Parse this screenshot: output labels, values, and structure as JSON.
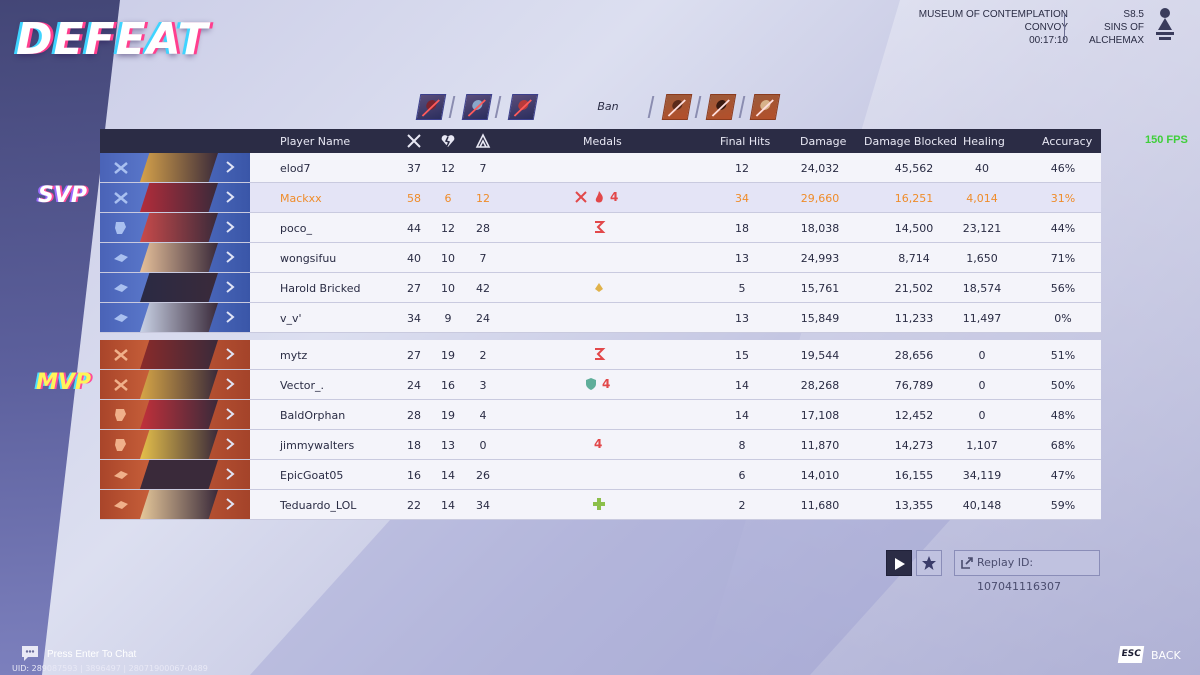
{
  "result_title": "DEFEAT",
  "map_info": {
    "map_name": "MUSEUM OF CONTEMPLATION",
    "mode": "CONVOY",
    "duration": "00:17:10",
    "season": "S8.5",
    "season_name": "SINS OF ALCHEMAX"
  },
  "fps": "150 FPS",
  "ban_label": "Ban",
  "headers": {
    "player_name": "Player Name",
    "medals": "Medals",
    "final_hits": "Final Hits",
    "damage": "Damage",
    "damage_blocked": "Damage Blocked",
    "healing": "Healing",
    "accuracy": "Accuracy",
    "kills_icon": "crossed-swords-icon",
    "deaths_icon": "broken-heart-icon",
    "assists_icon": "assist-icon"
  },
  "badges": {
    "svp": "SVP",
    "mvp": "MVP"
  },
  "team_blue": [
    {
      "name": "elod7",
      "kills": "37",
      "deaths": "12",
      "assists": "7",
      "final_hits": "12",
      "damage": "24,032",
      "damage_blocked": "45,562",
      "healing": "40",
      "accuracy": "46%"
    },
    {
      "name": "Mackxx",
      "kills": "58",
      "deaths": "6",
      "assists": "12",
      "final_hits": "34",
      "damage": "29,660",
      "damage_blocked": "16,251",
      "healing": "4,014",
      "accuracy": "31%"
    },
    {
      "name": "poco_",
      "kills": "44",
      "deaths": "12",
      "assists": "28",
      "final_hits": "18",
      "damage": "18,038",
      "damage_blocked": "14,500",
      "healing": "23,121",
      "accuracy": "44%"
    },
    {
      "name": "wongsifuu",
      "kills": "40",
      "deaths": "10",
      "assists": "7",
      "final_hits": "13",
      "damage": "24,993",
      "damage_blocked": "8,714",
      "healing": "1,650",
      "accuracy": "71%"
    },
    {
      "name": "Harold Bricked",
      "kills": "27",
      "deaths": "10",
      "assists": "42",
      "final_hits": "5",
      "damage": "15,761",
      "damage_blocked": "21,502",
      "healing": "18,574",
      "accuracy": "56%"
    },
    {
      "name": "v_v'",
      "kills": "34",
      "deaths": "9",
      "assists": "24",
      "final_hits": "13",
      "damage": "15,849",
      "damage_blocked": "11,233",
      "healing": "11,497",
      "accuracy": "0%"
    }
  ],
  "team_red": [
    {
      "name": "mytz",
      "kills": "27",
      "deaths": "19",
      "assists": "2",
      "final_hits": "15",
      "damage": "19,544",
      "damage_blocked": "28,656",
      "healing": "0",
      "accuracy": "51%"
    },
    {
      "name": "Vector_.",
      "kills": "24",
      "deaths": "16",
      "assists": "3",
      "final_hits": "14",
      "damage": "28,268",
      "damage_blocked": "76,789",
      "healing": "0",
      "accuracy": "50%"
    },
    {
      "name": "BaldOrphan",
      "kills": "28",
      "deaths": "19",
      "assists": "4",
      "final_hits": "14",
      "damage": "17,108",
      "damage_blocked": "12,452",
      "healing": "0",
      "accuracy": "48%"
    },
    {
      "name": "jimmywalters",
      "kills": "18",
      "deaths": "13",
      "assists": "0",
      "final_hits": "8",
      "damage": "11,870",
      "damage_blocked": "14,273",
      "healing": "1,107",
      "accuracy": "68%"
    },
    {
      "name": "EpicGoat05",
      "kills": "16",
      "deaths": "14",
      "assists": "26",
      "final_hits": "6",
      "damage": "14,010",
      "damage_blocked": "16,155",
      "healing": "34,119",
      "accuracy": "47%"
    },
    {
      "name": "Teduardo_LOL",
      "kills": "22",
      "deaths": "14",
      "assists": "34",
      "final_hits": "2",
      "damage": "11,680",
      "damage_blocked": "13,355",
      "healing": "40,148",
      "accuracy": "59%"
    }
  ],
  "medal_labels": {
    "streak_4": "4"
  },
  "replay_label": "Replay ID: 107041116307",
  "chat_prompt": "Press Enter To Chat",
  "uid_line": "UID: 289087593 | 3896497 | 28071900067-0489",
  "esc_key": "ESC",
  "back_label": "BACK",
  "colors": {
    "highlight_text": "#ef8c2a",
    "header_bg": "#2b2c45",
    "fps": "#3fcf3a",
    "blue_team": "#4a63b7",
    "red_team": "#a9452a"
  }
}
